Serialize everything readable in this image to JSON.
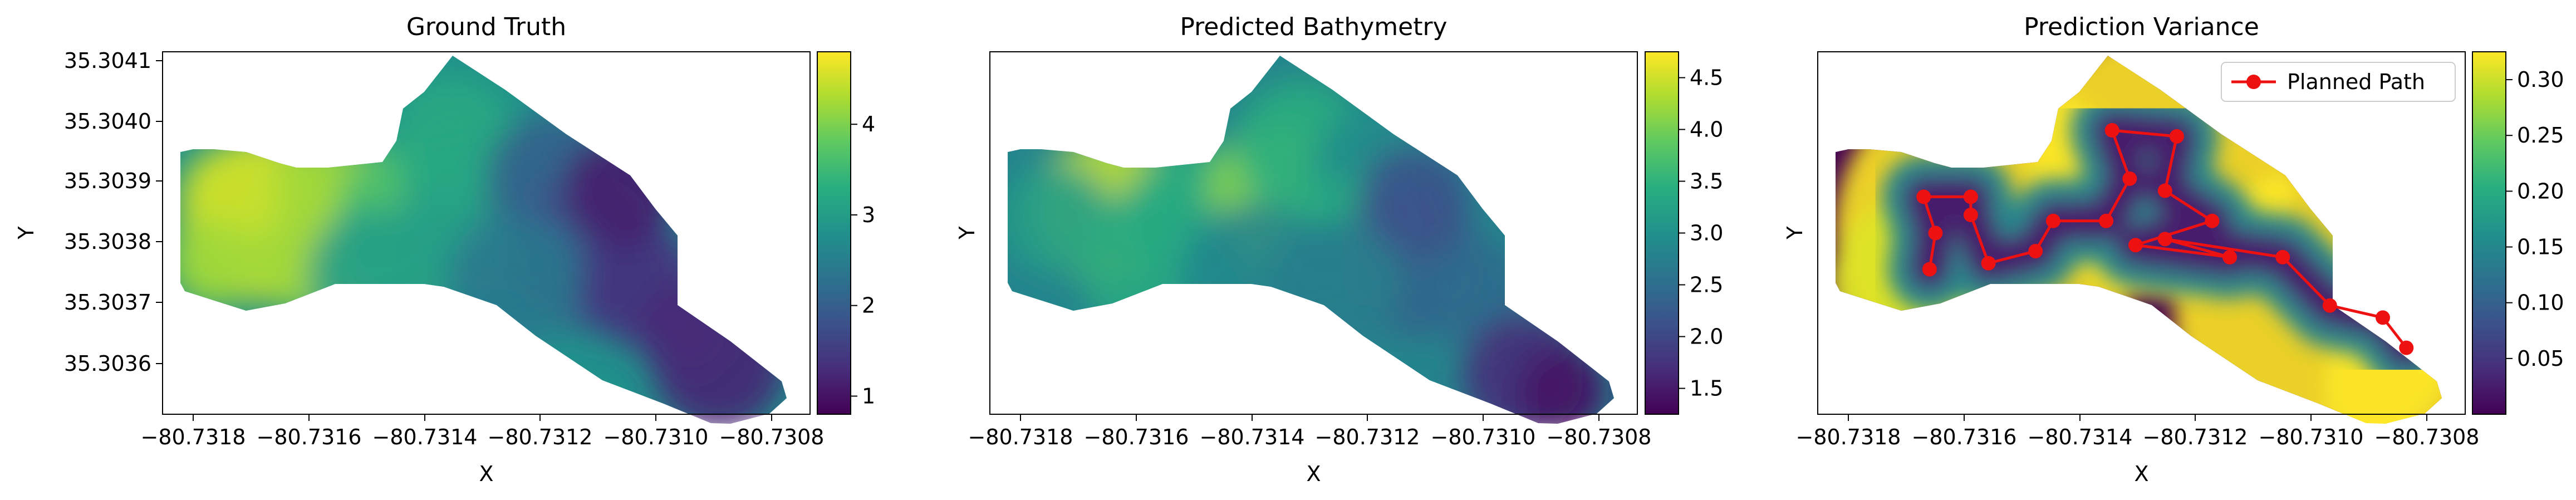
{
  "chart_data": [
    {
      "type": "heatmap",
      "title": "Ground Truth",
      "xlabel": "X",
      "ylabel": "Y",
      "xlim": [
        -80.7318,
        -80.7307
      ],
      "ylim": [
        35.30352,
        35.30412
      ],
      "x_ticks": [
        "−80.7318",
        "−80.7316",
        "−80.7314",
        "−80.7312",
        "−80.7310",
        "−80.7308"
      ],
      "y_ticks": [
        "35.3036",
        "35.3037",
        "35.3038",
        "35.3039",
        "35.3040",
        "35.3041"
      ],
      "colorbar": {
        "min": 0.8,
        "max": 4.8,
        "ticks": [
          "1",
          "2",
          "3",
          "4"
        ],
        "colormap": "viridis"
      }
    },
    {
      "type": "heatmap",
      "title": "Predicted Bathymetry",
      "xlabel": "X",
      "ylabel": "Y",
      "xlim": [
        -80.7318,
        -80.7307
      ],
      "ylim": [
        35.30352,
        35.30412
      ],
      "x_ticks": [
        "−80.7318",
        "−80.7316",
        "−80.7314",
        "−80.7312",
        "−80.7310",
        "−80.7308"
      ],
      "colorbar": {
        "min": 1.25,
        "max": 4.75,
        "ticks": [
          "1.5",
          "2.0",
          "2.5",
          "3.0",
          "3.5",
          "4.0",
          "4.5"
        ],
        "colormap": "viridis"
      }
    },
    {
      "type": "heatmap",
      "title": "Prediction Variance",
      "xlabel": "X",
      "ylabel": "Y",
      "xlim": [
        -80.7318,
        -80.7307
      ],
      "ylim": [
        35.30352,
        35.30412
      ],
      "x_ticks": [
        "−80.7318",
        "−80.7316",
        "−80.7314",
        "−80.7312",
        "−80.7310",
        "−80.7308"
      ],
      "colorbar": {
        "min": 0.0,
        "max": 0.325,
        "ticks": [
          "0.05",
          "0.10",
          "0.15",
          "0.20",
          "0.25",
          "0.30"
        ],
        "colormap": "viridis"
      },
      "legend": {
        "label": "Planned Path",
        "placement": "top-right",
        "color": "#ee1111"
      },
      "path": {
        "name": "Planned Path",
        "points": [
          [
            -80.73161,
            35.30376
          ],
          [
            -80.7316,
            35.30382
          ],
          [
            -80.73162,
            35.30388
          ],
          [
            -80.73154,
            35.30388
          ],
          [
            -80.73154,
            35.30385
          ],
          [
            -80.73151,
            35.30377
          ],
          [
            -80.73143,
            35.30379
          ],
          [
            -80.7314,
            35.30384
          ],
          [
            -80.73131,
            35.30384
          ],
          [
            -80.73127,
            35.30391
          ],
          [
            -80.7313,
            35.30399
          ],
          [
            -80.73119,
            35.30398
          ],
          [
            -80.73121,
            35.30389
          ],
          [
            -80.73113,
            35.30384
          ],
          [
            -80.73126,
            35.3038
          ],
          [
            -80.7311,
            35.30378
          ],
          [
            -80.73121,
            35.30381
          ],
          [
            -80.73101,
            35.30378
          ],
          [
            -80.73093,
            35.3037
          ],
          [
            -80.73084,
            35.30368
          ],
          [
            -80.7308,
            35.30363
          ]
        ]
      }
    }
  ],
  "colors": {
    "path": "#ee1111",
    "axis": "#000000",
    "background": "#ffffff"
  }
}
